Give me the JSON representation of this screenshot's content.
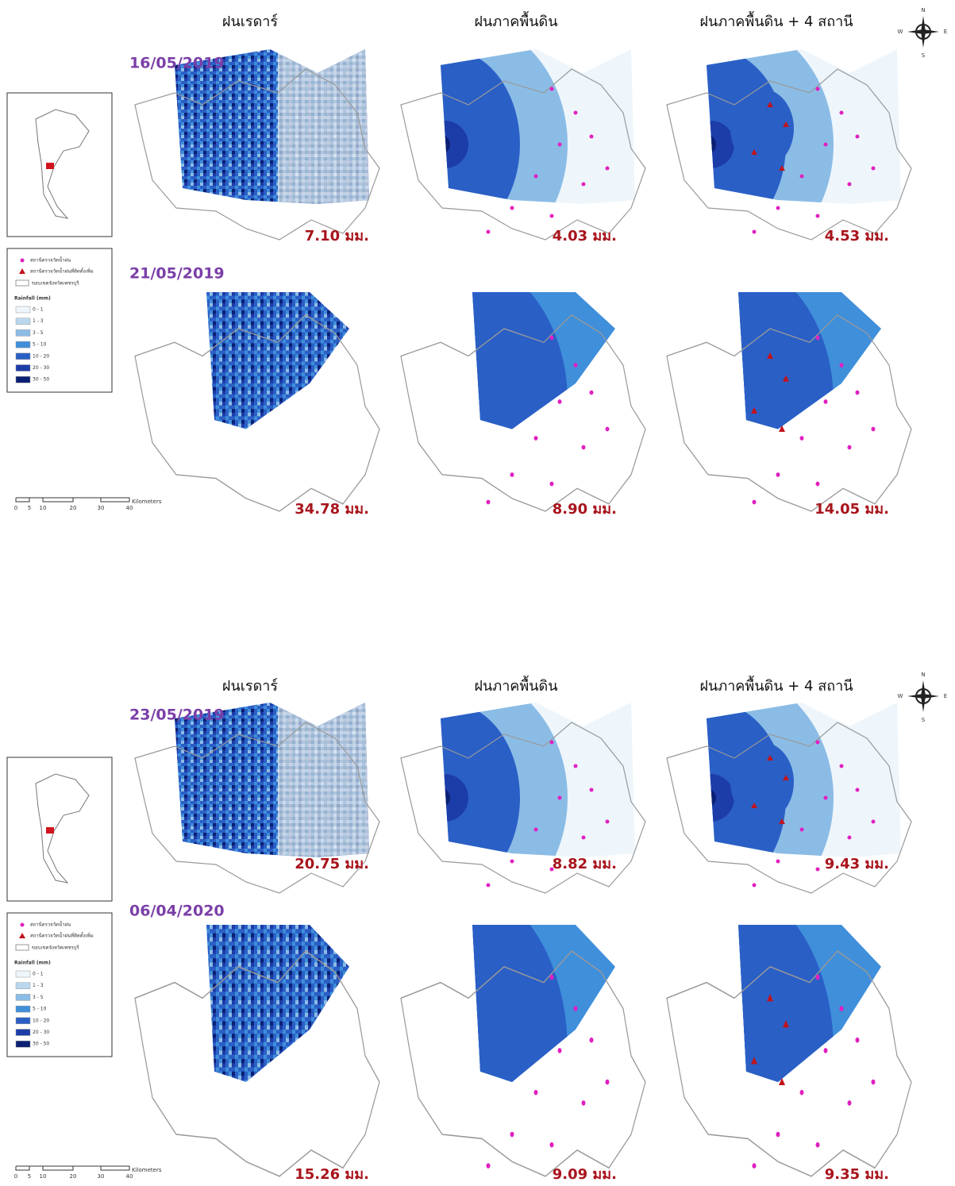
{
  "panels": [
    {
      "headers": [
        "ฝนเรดาร์",
        "ฝนภาคพื้นดิน",
        "ฝนภาคพื้นดิน + 4 สถานี"
      ],
      "rows": [
        {
          "date": "16/05/2019",
          "totals": [
            "7.10 มม.",
            "4.03 มม.",
            "4.53 มม."
          ]
        },
        {
          "date": "21/05/2019",
          "totals": [
            "34.78 มม.",
            "8.90 มม.",
            "14.05 มม."
          ]
        }
      ]
    },
    {
      "headers": [
        "ฝนเรดาร์",
        "ฝนภาคพื้นดิน",
        "ฝนภาคพื้นดิน + 4 สถานี"
      ],
      "rows": [
        {
          "date": "23/05/2019",
          "totals": [
            "20.75 มม.",
            "8.82 มม.",
            "9.43 มม."
          ]
        },
        {
          "date": "06/04/2020",
          "totals": [
            "15.26 มม.",
            "9.09 มม.",
            "9.35 มม."
          ]
        }
      ]
    }
  ],
  "legend": {
    "station": "สถานีตรวจวัดน้ำฝน",
    "added_station": "สถานีตรวจวัดน้ำฝนที่ติดตั้งเพิ่ม",
    "boundary": "ขอบเขตจังหวัดเพชรบุรี",
    "rainfall_title": "Rainfall (mm)",
    "classes": [
      "0 - 1",
      "1 - 3",
      "3 - 5",
      "5 - 10",
      "10 - 20",
      "20 - 30",
      "30 - 50"
    ]
  },
  "scale_bar": {
    "ticks": [
      "0",
      "5",
      "10",
      "20",
      "30",
      "40"
    ],
    "unit": "Kilometers"
  },
  "compass": {
    "n": "N",
    "s": "S",
    "e": "E",
    "w": "W"
  }
}
